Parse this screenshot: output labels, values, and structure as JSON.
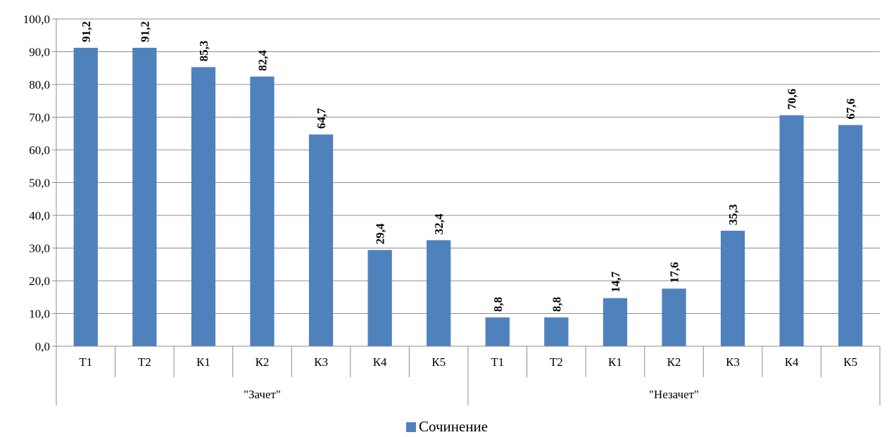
{
  "chart_data": {
    "type": "bar",
    "groups": [
      {
        "label": "\"Зачет\"",
        "categories": [
          "Т1",
          "Т2",
          "К1",
          "К2",
          "К3",
          "К4",
          "К5"
        ]
      },
      {
        "label": "\"Незачет\"",
        "categories": [
          "Т1",
          "Т2",
          "К1",
          "К2",
          "К3",
          "К4",
          "К5"
        ]
      }
    ],
    "series": [
      {
        "name": "Сочинение",
        "color": "#4F81BD",
        "values": [
          91.2,
          91.2,
          85.3,
          82.4,
          64.7,
          29.4,
          32.4,
          8.8,
          8.8,
          14.7,
          17.6,
          35.3,
          70.6,
          67.6
        ],
        "value_labels": [
          "91,2",
          "91,2",
          "85,3",
          "82,4",
          "64,7",
          "29,4",
          "32,4",
          "8,8",
          "8,8",
          "14,7",
          "17,6",
          "35,3",
          "70,6",
          "67,6"
        ]
      }
    ],
    "ylim": [
      0,
      100
    ],
    "yticks": [
      "0,0",
      "10,0",
      "20,0",
      "30,0",
      "40,0",
      "50,0",
      "60,0",
      "70,0",
      "80,0",
      "90,0",
      "100,0"
    ],
    "grid": true,
    "legend": "bottom-center",
    "data_label_orientation": "vertical"
  }
}
